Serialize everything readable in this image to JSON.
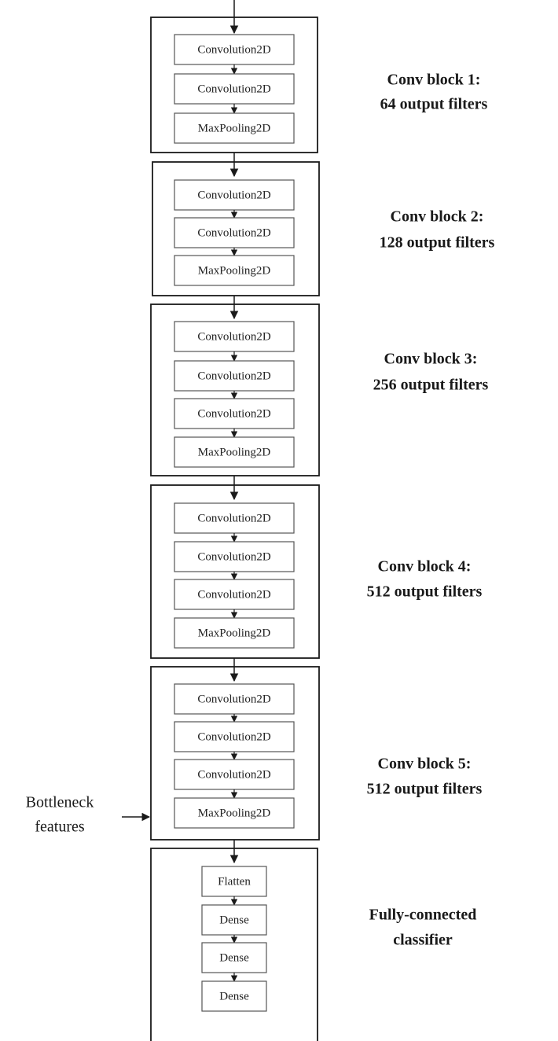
{
  "blocks": [
    {
      "title": "Conv block 1:",
      "subtitle": "64 output filters",
      "layers": [
        "Convolution2D",
        "Convolution2D",
        "MaxPooling2D"
      ]
    },
    {
      "title": "Conv block 2:",
      "subtitle": "128 output filters",
      "layers": [
        "Convolution2D",
        "Convolution2D",
        "MaxPooling2D"
      ]
    },
    {
      "title": "Conv block 3:",
      "subtitle": "256 output filters",
      "layers": [
        "Convolution2D",
        "Convolution2D",
        "Convolution2D",
        "MaxPooling2D"
      ]
    },
    {
      "title": "Conv block 4:",
      "subtitle": "512 output filters",
      "layers": [
        "Convolution2D",
        "Convolution2D",
        "Convolution2D",
        "MaxPooling2D"
      ]
    },
    {
      "title": "Conv block 5:",
      "subtitle": "512 output filters",
      "layers": [
        "Convolution2D",
        "Convolution2D",
        "Convolution2D",
        "MaxPooling2D"
      ]
    },
    {
      "title": "Fully-connected",
      "subtitle": "classifier",
      "layers": [
        "Flatten",
        "Dense",
        "Dense",
        "Dense"
      ]
    }
  ],
  "bottleneck": {
    "line1": "Bottleneck",
    "line2": "features"
  },
  "colors": {
    "stroke": "#1a1a1a",
    "text": "#222222",
    "background": "#ffffff"
  }
}
